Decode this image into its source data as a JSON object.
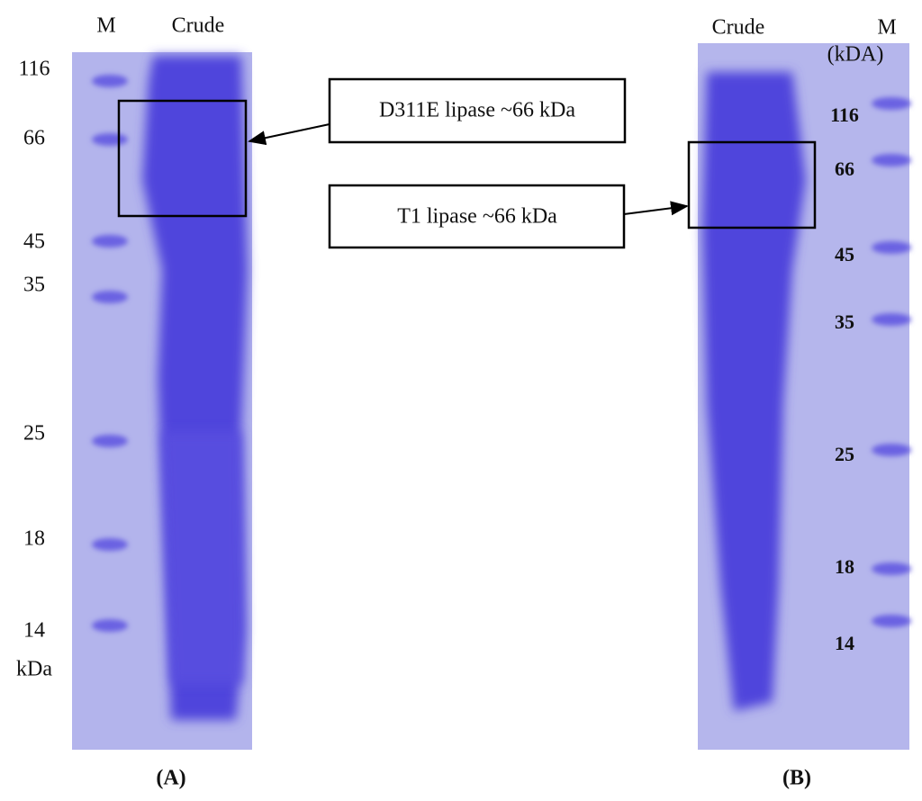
{
  "panel_a": {
    "lanes": [
      "M",
      "Crude"
    ],
    "markers": [
      "116",
      "66",
      "45",
      "35",
      "25",
      "18",
      "14"
    ],
    "unit": "kDa",
    "annotation": "D311E lipase ~66 kDa",
    "label": "(A)"
  },
  "panel_b": {
    "lanes": [
      "Crude",
      "M"
    ],
    "unit": "(kDA)",
    "markers": [
      "116",
      "66",
      "45",
      "35",
      "25",
      "18",
      "14"
    ],
    "annotation": "T1 lipase ~66 kDa",
    "label": "(B)"
  }
}
